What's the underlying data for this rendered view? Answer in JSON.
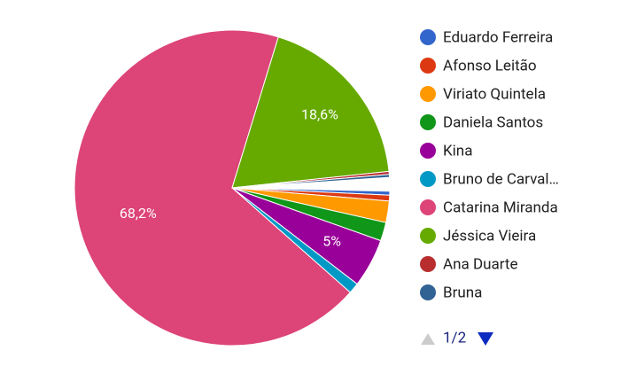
{
  "chart_data": {
    "type": "pie",
    "categories": [
      "Eduardo Ferreira",
      "Afonso Leitão",
      "Viriato Quintela",
      "Daniela Santos",
      "Kina",
      "Bruno de Carval…",
      "Catarina Miranda",
      "Jéssica Vieira",
      "Ana Duarte",
      "Bruna"
    ],
    "values": [
      0.4,
      0.6,
      2.2,
      1.9,
      5,
      1.1,
      68.2,
      18.6,
      0.3,
      0.3
    ],
    "value_labels": [
      null,
      null,
      null,
      null,
      "5%",
      null,
      "68,2%",
      "18,6%",
      null,
      null
    ],
    "colors": [
      "#3366cc",
      "#dc3912",
      "#ff9900",
      "#109618",
      "#990099",
      "#0099c6",
      "#dd4477",
      "#66aa00",
      "#b82e2e",
      "#316395"
    ],
    "legend_position": "right",
    "pagination": "1/2"
  }
}
